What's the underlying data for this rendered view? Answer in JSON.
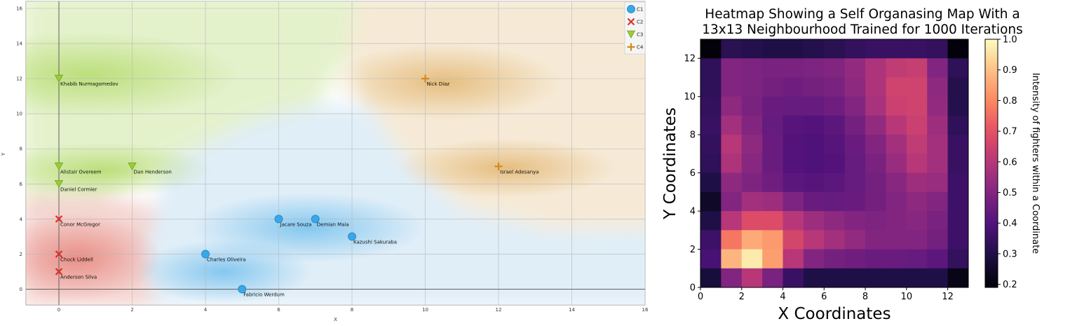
{
  "charts": [
    {
      "type": "scatter",
      "title": "",
      "xlabel": "X",
      "ylabel": "Y",
      "xlim": [
        -0.9,
        16
      ],
      "ylim": [
        -0.9,
        16.4
      ],
      "xticks": [
        0,
        2,
        4,
        6,
        8,
        10,
        12,
        14,
        16
      ],
      "yticks": [
        0,
        2,
        4,
        6,
        8,
        10,
        12,
        14,
        16
      ],
      "grid": true,
      "legend_position": "top-right",
      "background": "decision regions shaded by class",
      "classes": [
        {
          "name": "C1",
          "marker": "circle",
          "color": "#3aa8e8"
        },
        {
          "name": "C2",
          "marker": "x",
          "color": "#d9342b"
        },
        {
          "name": "C3",
          "marker": "triangle-down",
          "color": "#9acd32"
        },
        {
          "name": "C4",
          "marker": "plus",
          "color": "#d48a1e"
        }
      ],
      "points": [
        {
          "label": "Khabib Nurmagomedov",
          "x": 0,
          "y": 12,
          "class": "C3"
        },
        {
          "label": "Alistair Overeem",
          "x": 0,
          "y": 7,
          "class": "C3"
        },
        {
          "label": "Daniel Cormier",
          "x": 0,
          "y": 6,
          "class": "C3"
        },
        {
          "label": "Dan Henderson",
          "x": 2,
          "y": 7,
          "class": "C3"
        },
        {
          "label": "Conor McGregor",
          "x": 0,
          "y": 4,
          "class": "C2"
        },
        {
          "label": "Chuck Liddell",
          "x": 0,
          "y": 2,
          "class": "C2"
        },
        {
          "label": "Anderson Silva",
          "x": 0,
          "y": 1,
          "class": "C2"
        },
        {
          "label": "Nick Diaz",
          "x": 10,
          "y": 12,
          "class": "C4"
        },
        {
          "label": "Israel Adesanya",
          "x": 12,
          "y": 7,
          "class": "C4"
        },
        {
          "label": "Jacare Souza",
          "x": 6,
          "y": 4,
          "class": "C1"
        },
        {
          "label": "Demian Maia",
          "x": 7,
          "y": 4,
          "class": "C1"
        },
        {
          "label": "Kazushi Sakuraba",
          "x": 8,
          "y": 3,
          "class": "C1"
        },
        {
          "label": "Charles Oliveira",
          "x": 4,
          "y": 2,
          "class": "C1"
        },
        {
          "label": "Fabricio Werdum",
          "x": 5,
          "y": 0,
          "class": "C1"
        }
      ]
    },
    {
      "type": "heatmap",
      "title_lines": [
        "Heatmap Showing a Self Organasing Map With a",
        "13x13 Neighbourhood Trained for 1000 Iterations"
      ],
      "xlabel": "X Coordinates",
      "ylabel": "Y Coordinates",
      "xticks": [
        0,
        2,
        4,
        6,
        8,
        10,
        12
      ],
      "yticks": [
        0,
        2,
        4,
        6,
        8,
        10,
        12
      ],
      "xlim": [
        0,
        13
      ],
      "ylim": [
        0,
        13
      ],
      "colorbar_label": "Intensity of fighters within a Coordinate",
      "colorbar_ticks": [
        "0.2",
        "0.3",
        "0.4",
        "0.5",
        "0.6",
        "0.7",
        "0.8",
        "0.9",
        "1.0"
      ],
      "colormap": "magma",
      "vmin": 0.19,
      "vmax": 1.0,
      "grid_rows_top_to_bottom": [
        [
          0.2,
          0.32,
          0.31,
          0.3,
          0.3,
          0.31,
          0.32,
          0.34,
          0.35,
          0.35,
          0.35,
          0.34,
          0.2
        ],
        [
          0.33,
          0.5,
          0.49,
          0.48,
          0.48,
          0.49,
          0.5,
          0.53,
          0.58,
          0.62,
          0.63,
          0.5,
          0.33
        ],
        [
          0.33,
          0.5,
          0.49,
          0.47,
          0.46,
          0.47,
          0.48,
          0.52,
          0.58,
          0.65,
          0.65,
          0.52,
          0.31
        ],
        [
          0.34,
          0.52,
          0.48,
          0.45,
          0.44,
          0.44,
          0.46,
          0.5,
          0.57,
          0.64,
          0.65,
          0.53,
          0.31
        ],
        [
          0.35,
          0.56,
          0.5,
          0.44,
          0.41,
          0.4,
          0.42,
          0.47,
          0.53,
          0.6,
          0.64,
          0.55,
          0.33
        ],
        [
          0.34,
          0.6,
          0.52,
          0.45,
          0.4,
          0.39,
          0.41,
          0.45,
          0.5,
          0.56,
          0.62,
          0.56,
          0.35
        ],
        [
          0.33,
          0.58,
          0.51,
          0.45,
          0.4,
          0.39,
          0.4,
          0.44,
          0.48,
          0.54,
          0.6,
          0.56,
          0.35
        ],
        [
          0.3,
          0.52,
          0.49,
          0.46,
          0.42,
          0.41,
          0.42,
          0.44,
          0.47,
          0.51,
          0.55,
          0.54,
          0.36
        ],
        [
          0.25,
          0.5,
          0.56,
          0.55,
          0.49,
          0.45,
          0.44,
          0.45,
          0.47,
          0.5,
          0.52,
          0.5,
          0.36
        ],
        [
          0.3,
          0.6,
          0.68,
          0.68,
          0.6,
          0.55,
          0.52,
          0.5,
          0.49,
          0.5,
          0.51,
          0.48,
          0.36
        ],
        [
          0.36,
          0.77,
          0.86,
          0.83,
          0.66,
          0.6,
          0.56,
          0.53,
          0.5,
          0.5,
          0.5,
          0.47,
          0.36
        ],
        [
          0.38,
          0.88,
          0.97,
          0.84,
          0.6,
          0.5,
          0.47,
          0.46,
          0.45,
          0.45,
          0.44,
          0.42,
          0.34
        ],
        [
          0.28,
          0.5,
          0.6,
          0.48,
          0.35,
          0.3,
          0.3,
          0.3,
          0.3,
          0.3,
          0.3,
          0.3,
          0.22
        ]
      ]
    }
  ]
}
